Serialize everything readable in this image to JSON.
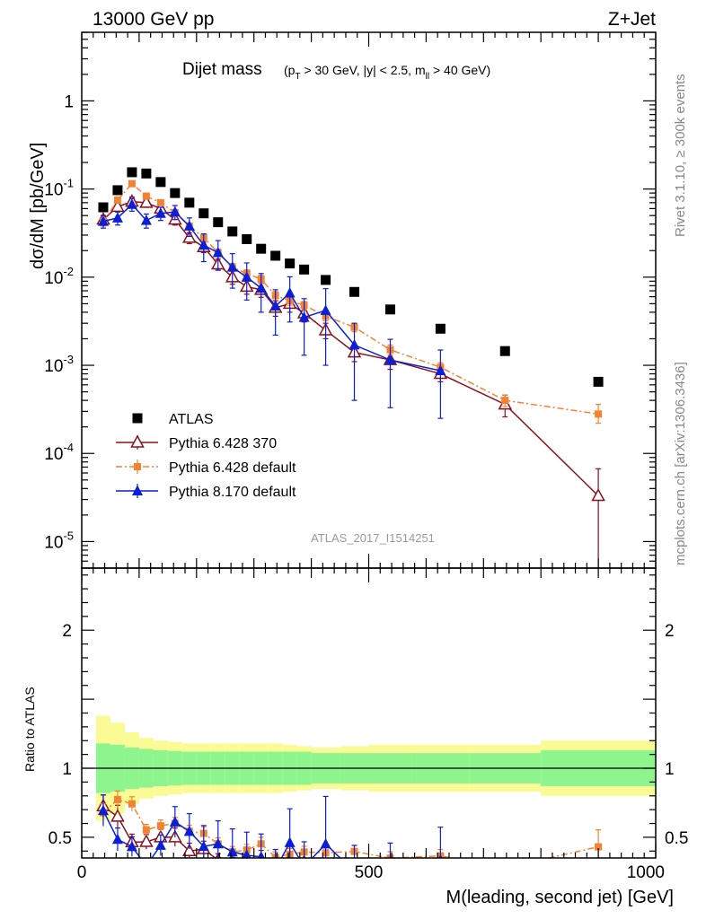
{
  "header": {
    "left": "13000 GeV pp",
    "right": "Z+Jet"
  },
  "side_labels": {
    "rivet": "Rivet 3.1.10, ≥ 300k events",
    "mcplots": "mcplots.cern.ch [arXiv:1306.3436]"
  },
  "chart_data": {
    "type": "scatter",
    "title": {
      "main": "Dijet mass",
      "cuts": "(p_T > 30 GeV, |y| < 2.5, m_ll > 40 GeV)"
    },
    "analysis_label": "ATLAS_2017_I1514251",
    "xlabel": "M(leading, second jet) [GeV]",
    "ylabel_main": "dσ/dM [pb/GeV]",
    "ylabel_ratio": "Ratio to ATLAS",
    "xlim": [
      0,
      1000
    ],
    "ylim_main": [
      5e-06,
      6
    ],
    "yscale_main": "log",
    "ylim_ratio": [
      0.35,
      2.45
    ],
    "x_ticks": [
      "0",
      "500",
      "1000"
    ],
    "ratio_ticks": [
      "0.5",
      "1",
      "2"
    ],
    "main_tick_labels": [
      "1",
      "10^-1",
      "10^-2",
      "10^-3",
      "10^-4",
      "10^-5"
    ],
    "legend_position": "lower-left",
    "colors": {
      "atlas": "#000000",
      "py6_370": "#8b0f1c",
      "py6_default": "#f58231",
      "py8": "#0a1fd6",
      "band_inner": "#8ef58e",
      "band_outer": "#fbfb96"
    },
    "series": [
      {
        "name": "ATLAS",
        "style": "square",
        "x": [
          37.5,
          62.5,
          87.5,
          112.5,
          137.5,
          162.5,
          187.5,
          212.5,
          237.5,
          262.5,
          287.5,
          312.5,
          337.5,
          362.5,
          387.5,
          425,
          475,
          537.5,
          625,
          737.5,
          900
        ],
        "y": [
          0.062,
          0.097,
          0.155,
          0.15,
          0.12,
          0.09,
          0.07,
          0.053,
          0.042,
          0.033,
          0.027,
          0.021,
          0.0175,
          0.0143,
          0.0122,
          0.0093,
          0.0068,
          0.0043,
          0.0026,
          0.00145,
          0.00065
        ]
      },
      {
        "name": "Pythia 6.428 370",
        "style": "open-triangle",
        "x": [
          37.5,
          62.5,
          87.5,
          112.5,
          137.5,
          162.5,
          187.5,
          212.5,
          237.5,
          262.5,
          287.5,
          312.5,
          337.5,
          362.5,
          387.5,
          425,
          475,
          537.5,
          625,
          737.5,
          900
        ],
        "y": [
          0.045,
          0.063,
          0.072,
          0.07,
          0.06,
          0.045,
          0.028,
          0.022,
          0.014,
          0.01,
          0.0078,
          0.0072,
          0.0045,
          0.005,
          0.0039,
          0.0025,
          0.0014,
          0.00115,
          0.0008,
          0.00036,
          3.3e-05
        ],
        "err_lo": [
          0.005,
          0.008,
          0.009,
          0.008,
          0.007,
          0.006,
          0.004,
          0.003,
          0.002,
          0.0017,
          0.0014,
          0.0013,
          0.0009,
          0.001,
          0.0008,
          0.0005,
          0.0003,
          0.00025,
          0.00015,
          0.0001,
          3.3e-05
        ],
        "err_hi": [
          0.005,
          0.008,
          0.009,
          0.008,
          0.007,
          0.006,
          0.004,
          0.003,
          0.002,
          0.0017,
          0.0014,
          0.0013,
          0.0009,
          0.001,
          0.0008,
          0.0005,
          0.0003,
          0.00025,
          0.00015,
          0.0001,
          3.4e-05
        ]
      },
      {
        "name": "Pythia 6.428 default",
        "style": "filled-square-dashdot",
        "x": [
          37.5,
          62.5,
          87.5,
          112.5,
          137.5,
          162.5,
          187.5,
          212.5,
          237.5,
          262.5,
          287.5,
          312.5,
          337.5,
          362.5,
          387.5,
          425,
          475,
          537.5,
          625,
          737.5,
          900
        ],
        "y": [
          0.042,
          0.075,
          0.115,
          0.083,
          0.07,
          0.054,
          0.038,
          0.028,
          0.019,
          0.013,
          0.011,
          0.0095,
          0.0062,
          0.0054,
          0.0048,
          0.0036,
          0.0027,
          0.0015,
          0.00095,
          0.0004,
          0.00028
        ],
        "err_lo": [
          0.004,
          0.006,
          0.008,
          0.006,
          0.005,
          0.004,
          0.003,
          0.0025,
          0.0018,
          0.0013,
          0.0011,
          0.001,
          0.0007,
          0.0006,
          0.0005,
          0.0004,
          0.0003,
          0.0002,
          0.00012,
          6e-05,
          6e-05
        ],
        "err_hi": [
          0.004,
          0.006,
          0.008,
          0.006,
          0.005,
          0.004,
          0.003,
          0.0025,
          0.0018,
          0.0013,
          0.0011,
          0.001,
          0.0007,
          0.0006,
          0.0005,
          0.0004,
          0.0003,
          0.0002,
          0.00012,
          6e-05,
          8e-05
        ]
      },
      {
        "name": "Pythia 8.170 default",
        "style": "filled-triangle",
        "x": [
          37.5,
          62.5,
          87.5,
          112.5,
          137.5,
          162.5,
          187.5,
          212.5,
          237.5,
          262.5,
          287.5,
          312.5,
          337.5,
          362.5,
          387.5,
          425,
          475,
          537.5,
          625
        ],
        "y": [
          0.043,
          0.047,
          0.067,
          0.044,
          0.053,
          0.055,
          0.038,
          0.023,
          0.019,
          0.013,
          0.01,
          0.0075,
          0.0047,
          0.0066,
          0.0035,
          0.0042,
          0.0017,
          0.00115,
          0.00087
        ],
        "err_lo": [
          0.007,
          0.008,
          0.011,
          0.008,
          0.009,
          0.01,
          0.009,
          0.008,
          0.007,
          0.0055,
          0.0045,
          0.0035,
          0.0025,
          0.0035,
          0.0022,
          0.0032,
          0.0013,
          0.00082,
          0.00062
        ],
        "err_hi": [
          0.007,
          0.008,
          0.011,
          0.008,
          0.009,
          0.01,
          0.009,
          0.008,
          0.007,
          0.0055,
          0.0045,
          0.0035,
          0.0025,
          0.0035,
          0.0022,
          0.0032,
          0.0013,
          0.00082,
          0.00062
        ]
      }
    ],
    "ratio_band": {
      "edges": [
        25,
        50,
        75,
        100,
        125,
        150,
        175,
        200,
        225,
        250,
        275,
        300,
        325,
        350,
        375,
        400,
        450,
        500,
        575,
        675,
        800,
        1000
      ],
      "inner": [
        0.18,
        0.17,
        0.15,
        0.14,
        0.13,
        0.125,
        0.12,
        0.12,
        0.12,
        0.12,
        0.12,
        0.12,
        0.12,
        0.12,
        0.12,
        0.11,
        0.11,
        0.11,
        0.11,
        0.11,
        0.13
      ],
      "outer": [
        0.38,
        0.33,
        0.26,
        0.22,
        0.2,
        0.19,
        0.18,
        0.18,
        0.18,
        0.18,
        0.18,
        0.18,
        0.18,
        0.17,
        0.16,
        0.15,
        0.16,
        0.17,
        0.17,
        0.17,
        0.2
      ]
    }
  }
}
